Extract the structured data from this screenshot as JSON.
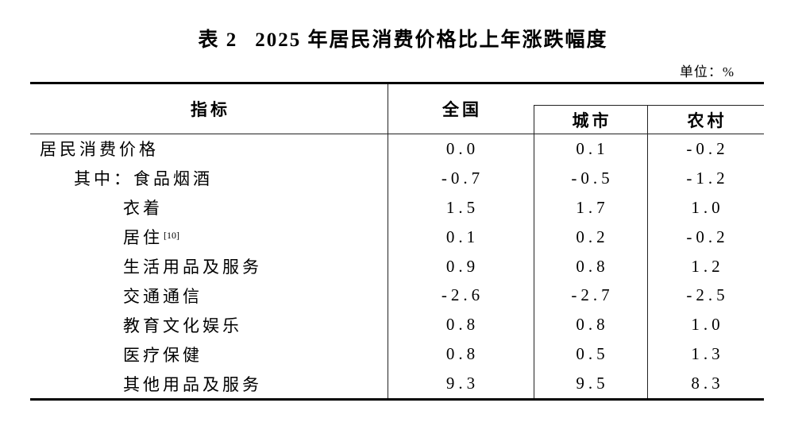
{
  "page": {
    "background": "#ffffff",
    "text_color": "#000000",
    "rule_color": "#222222"
  },
  "title": {
    "table_label": "表 2",
    "text": "2025 年居民消费价格比上年涨跌幅度"
  },
  "unit_label": "单位：%",
  "table": {
    "columns": {
      "indicator": "指标",
      "national": "全国",
      "urban": "城市",
      "rural": "农村"
    },
    "rows": [
      {
        "indicator": "居民消费价格",
        "indent": 0,
        "sup": "",
        "national": "0.0",
        "urban": "0.1",
        "rural": "-0.2"
      },
      {
        "indicator": "其中：食品烟酒",
        "indent": 1,
        "sup": "",
        "national": "-0.7",
        "urban": "-0.5",
        "rural": "-1.2"
      },
      {
        "indicator": "衣着",
        "indent": 2,
        "sup": "",
        "national": "1.5",
        "urban": "1.7",
        "rural": "1.0"
      },
      {
        "indicator": "居住",
        "indent": 2,
        "sup": "[10]",
        "national": "0.1",
        "urban": "0.2",
        "rural": "-0.2"
      },
      {
        "indicator": "生活用品及服务",
        "indent": 2,
        "sup": "",
        "national": "0.9",
        "urban": "0.8",
        "rural": "1.2"
      },
      {
        "indicator": "交通通信",
        "indent": 2,
        "sup": "",
        "national": "-2.6",
        "urban": "-2.7",
        "rural": "-2.5"
      },
      {
        "indicator": "教育文化娱乐",
        "indent": 2,
        "sup": "",
        "national": "0.8",
        "urban": "0.8",
        "rural": "1.0"
      },
      {
        "indicator": "医疗保健",
        "indent": 2,
        "sup": "",
        "national": "0.8",
        "urban": "0.5",
        "rural": "1.3"
      },
      {
        "indicator": "其他用品及服务",
        "indent": 2,
        "sup": "",
        "national": "9.3",
        "urban": "9.5",
        "rural": "8.3"
      }
    ]
  },
  "chart_data": {
    "type": "table",
    "title": "表 2 2025 年居民消费价格比上年涨跌幅度",
    "unit": "%",
    "categories": [
      "居民消费价格",
      "其中：食品烟酒",
      "衣着",
      "居住[10]",
      "生活用品及服务",
      "交通通信",
      "教育文化娱乐",
      "医疗保健",
      "其他用品及服务"
    ],
    "series": [
      {
        "name": "全国",
        "values": [
          0.0,
          -0.7,
          1.5,
          0.1,
          0.9,
          -2.6,
          0.8,
          0.8,
          9.3
        ]
      },
      {
        "name": "城市",
        "values": [
          0.1,
          -0.5,
          1.7,
          0.2,
          0.8,
          -2.7,
          0.8,
          0.5,
          9.5
        ]
      },
      {
        "name": "农村",
        "values": [
          -0.2,
          -1.2,
          1.0,
          -0.2,
          1.2,
          -2.5,
          1.0,
          1.3,
          8.3
        ]
      }
    ]
  }
}
